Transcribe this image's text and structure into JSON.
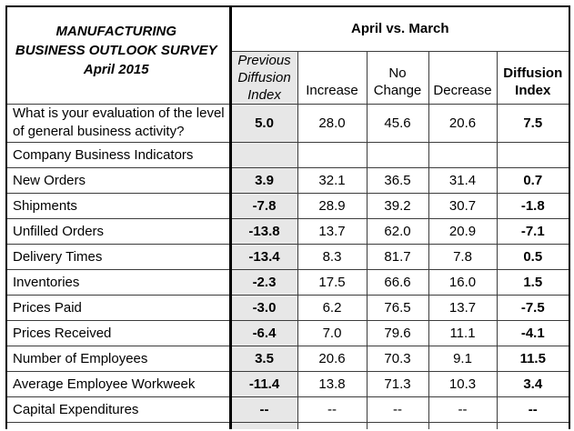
{
  "title": "MANUFACTURING\nBUSINESS OUTLOOK SURVEY\nApril 2015",
  "comparison_header": "April vs. March",
  "columns": {
    "previous": "Previous\nDiffusion\nIndex",
    "increase": "Increase",
    "no_change": "No\nChange",
    "decrease": "Decrease",
    "diffusion": "Diffusion\nIndex"
  },
  "rows": [
    {
      "label": "What is your evaluation of the level of general business activity?",
      "previous": "5.0",
      "increase": "28.0",
      "no_change": "45.6",
      "decrease": "20.6",
      "diffusion": "7.5",
      "type": "question"
    },
    {
      "label": "Company Business Indicators",
      "previous": "",
      "increase": "",
      "no_change": "",
      "decrease": "",
      "diffusion": "",
      "type": "section"
    },
    {
      "label": "New Orders",
      "previous": "3.9",
      "increase": "32.1",
      "no_change": "36.5",
      "decrease": "31.4",
      "diffusion": "0.7"
    },
    {
      "label": "Shipments",
      "previous": "-7.8",
      "increase": "28.9",
      "no_change": "39.2",
      "decrease": "30.7",
      "diffusion": "-1.8"
    },
    {
      "label": "Unfilled Orders",
      "previous": "-13.8",
      "increase": "13.7",
      "no_change": "62.0",
      "decrease": "20.9",
      "diffusion": "-7.1"
    },
    {
      "label": "Delivery Times",
      "previous": "-13.4",
      "increase": "8.3",
      "no_change": "81.7",
      "decrease": "7.8",
      "diffusion": "0.5"
    },
    {
      "label": "Inventories",
      "previous": "-2.3",
      "increase": "17.5",
      "no_change": "66.6",
      "decrease": "16.0",
      "diffusion": "1.5"
    },
    {
      "label": "Prices Paid",
      "previous": "-3.0",
      "increase": "6.2",
      "no_change": "76.5",
      "decrease": "13.7",
      "diffusion": "-7.5"
    },
    {
      "label": "Prices Received",
      "previous": "-6.4",
      "increase": "7.0",
      "no_change": "79.6",
      "decrease": "11.1",
      "diffusion": "-4.1"
    },
    {
      "label": "Number of Employees",
      "previous": "3.5",
      "increase": "20.6",
      "no_change": "70.3",
      "decrease": "9.1",
      "diffusion": "11.5"
    },
    {
      "label": "Average Employee Workweek",
      "previous": "-11.4",
      "increase": "13.8",
      "no_change": "71.3",
      "decrease": "10.3",
      "diffusion": "3.4"
    },
    {
      "label": "Capital Expenditures",
      "previous": "--",
      "increase": "--",
      "no_change": "--",
      "decrease": "--",
      "diffusion": "--"
    }
  ],
  "colors": {
    "shaded_column": "#e7e7e7",
    "outer_border": "#000000",
    "grid_border": "#3c3c3c"
  }
}
